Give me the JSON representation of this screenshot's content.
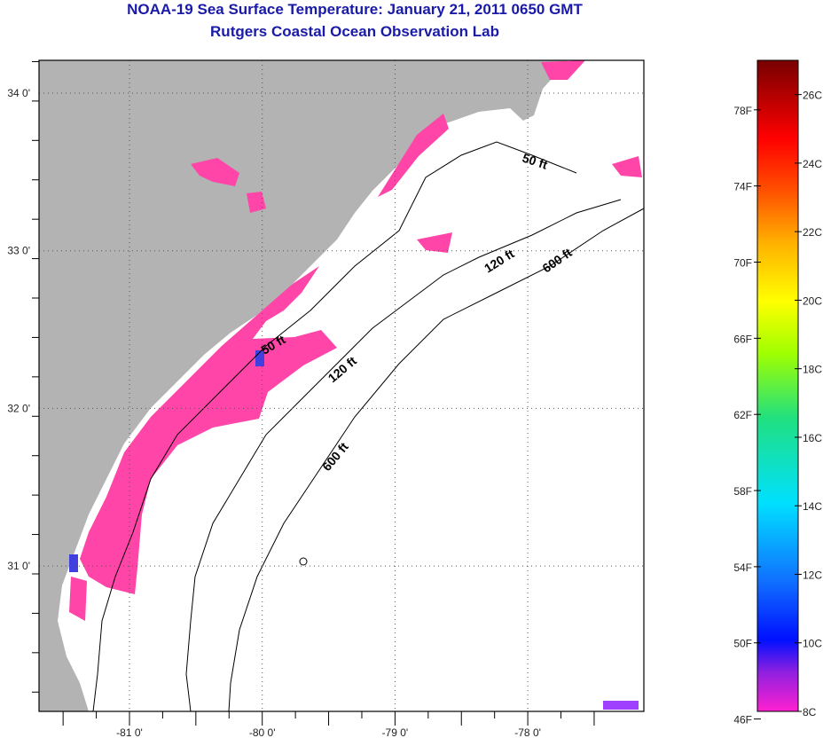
{
  "header": {
    "title": "NOAA-19 Sea Surface Temperature:  January 21, 2011 0650 GMT",
    "subtitle": "Rutgers Coastal Ocean Observation Lab"
  },
  "map": {
    "lon_ticks": [
      {
        "value": -81,
        "label": "-81 0'"
      },
      {
        "value": -80,
        "label": "-80 0'"
      },
      {
        "value": -79,
        "label": "-79 0'"
      },
      {
        "value": -78,
        "label": "-78 0'"
      }
    ],
    "lat_ticks": [
      {
        "value": 34,
        "label": "34 0'"
      },
      {
        "value": 33,
        "label": "33 0'"
      },
      {
        "value": 32,
        "label": "32 0'"
      },
      {
        "value": 31,
        "label": "31 0'"
      }
    ],
    "contour_labels": [
      "50 ft",
      "50 ft",
      "120 ft",
      "120 ft",
      "600 ft",
      "600 ft"
    ],
    "colors": {
      "land": "#b3b3b3",
      "ocean": "#ffffff",
      "cold_sst": "#ff45a8"
    }
  },
  "colorbar": {
    "fahrenheit_labels": [
      "78F",
      "74F",
      "70F",
      "66F",
      "62F",
      "58F",
      "54F",
      "50F",
      "46F"
    ],
    "celsius_labels": [
      "26C",
      "24C",
      "22C",
      "20C",
      "18C",
      "16C",
      "14C",
      "12C",
      "10C",
      "8C"
    ],
    "range_c": [
      8,
      27
    ]
  }
}
